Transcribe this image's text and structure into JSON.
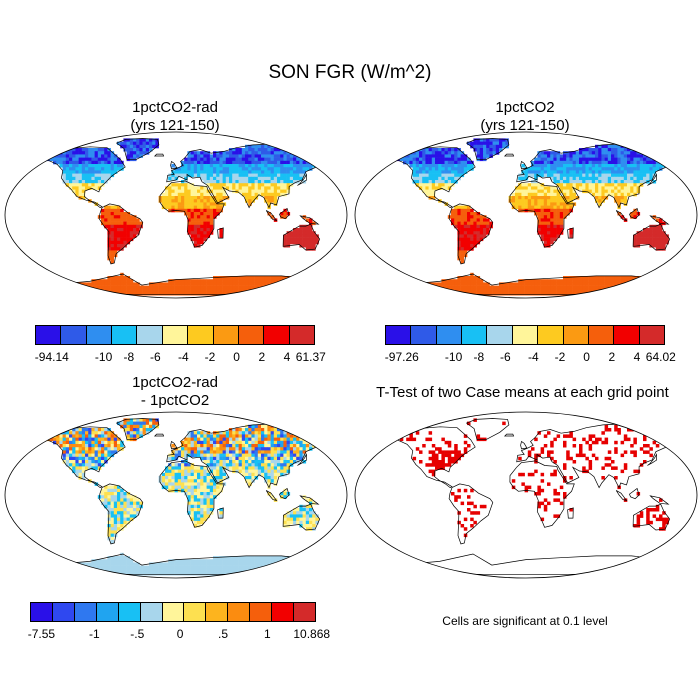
{
  "main_title": "SON FGR (W/m^2)",
  "panels": [
    {
      "title": [
        "1pctCO2-rad",
        "(yrs 121-150)"
      ],
      "colorbar": {
        "colors": [
          "#2a10e8",
          "#2f5ae8",
          "#2f8ef0",
          "#18c0f4",
          "#a8d6ec",
          "#fff59a",
          "#fdca20",
          "#fb9a12",
          "#f55f0c",
          "#f20000",
          "#d42a2a"
        ],
        "labels": [
          "-94.14",
          "-10",
          "-8",
          "-6",
          "-4",
          "-2",
          "0",
          "2",
          "4",
          "61.37"
        ]
      }
    },
    {
      "title": [
        "1pctCO2",
        "(yrs 121-150)"
      ],
      "colorbar": {
        "colors": [
          "#2a10e8",
          "#2f5ae8",
          "#2f8ef0",
          "#18c0f4",
          "#a8d6ec",
          "#fff59a",
          "#fdca20",
          "#fb9a12",
          "#f55f0c",
          "#f20000",
          "#d42a2a"
        ],
        "labels": [
          "-97.26",
          "-10",
          "-8",
          "-6",
          "-4",
          "-2",
          "0",
          "2",
          "4",
          "64.02"
        ]
      }
    },
    {
      "title": [
        "1pctCO2-rad",
        "- 1pctCO2"
      ],
      "colorbar": {
        "colors": [
          "#2a10e8",
          "#2f48f0",
          "#2f78f0",
          "#20a4f0",
          "#18c0f4",
          "#a8d6ec",
          "#fff59a",
          "#fde050",
          "#fdb41e",
          "#fb8c10",
          "#f55f0c",
          "#f20000",
          "#d42a2a"
        ],
        "labels": [
          "-7.55",
          "-1",
          "-.5",
          "0",
          ".5",
          "1",
          "10.868"
        ]
      }
    },
    {
      "title": [
        "T-Test of two Case means at each grid point"
      ],
      "note": "Cells are significant at 0.1 level"
    }
  ]
}
